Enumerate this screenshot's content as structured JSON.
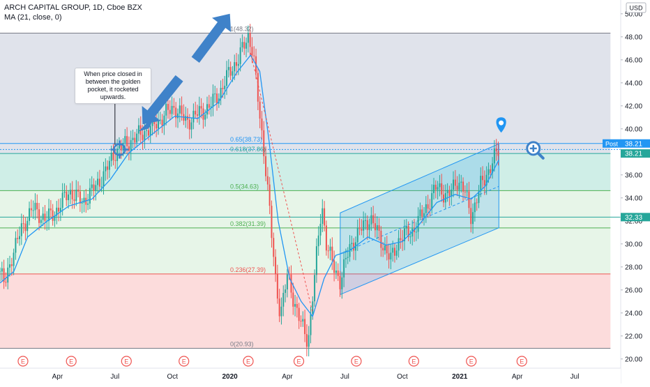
{
  "header": {
    "title": "ARCH CAPITAL GROUP, 1D, Cboe BZX",
    "indicator": "MA (21, close, 0)"
  },
  "callout": {
    "text": "When price closed in between the golden pocket, it rocketed upwards."
  },
  "price_axis": {
    "currency": "USD",
    "post_label": "Post",
    "post_value": "38.21",
    "last_value": "38.21",
    "level_value": "32.33"
  },
  "earnings_marker": "E",
  "colors": {
    "up": "#26a69a",
    "down": "#ef5350",
    "ma": "#2196f3",
    "channel": "#2196f3",
    "arrow": "#3f82c9",
    "fib_1_to_0618": "#e0e3eb",
    "fib_0618_to_05": "#cfeee7",
    "fib_05_to_0236": "#e7f5e8",
    "fib_0236_to_0": "#fcdcdc"
  },
  "chart_data": {
    "type": "candlestick",
    "title": "ARCH CAPITAL GROUP, 1D, Cboe BZX",
    "ylabel": "USD",
    "ylim": [
      19.2,
      51.2
    ],
    "y_ticks": [
      "20.00",
      "22.00",
      "24.00",
      "26.00",
      "28.00",
      "30.00",
      "32.00",
      "34.00",
      "36.00",
      "38.00",
      "40.00",
      "42.00",
      "44.00",
      "46.00",
      "48.00",
      "50.00"
    ],
    "x_ticks": [
      {
        "t": 0.25,
        "label": "Apr"
      },
      {
        "t": 0.5,
        "label": "Jul"
      },
      {
        "t": 0.75,
        "label": "Oct"
      },
      {
        "t": 1.0,
        "label": "2020"
      },
      {
        "t": 1.25,
        "label": "Apr"
      },
      {
        "t": 1.5,
        "label": "Jul"
      },
      {
        "t": 1.75,
        "label": "Oct"
      },
      {
        "t": 2.0,
        "label": "2021"
      },
      {
        "t": 2.25,
        "label": "Apr"
      },
      {
        "t": 2.5,
        "label": "Jul"
      }
    ],
    "time_range": [
      0.0,
      2.7
    ],
    "fib_levels": [
      {
        "label": "1(48.32)",
        "ratio": 1,
        "price": 48.32
      },
      {
        "label": "0.65(38.73)",
        "ratio": 0.65,
        "price": 38.73
      },
      {
        "label": "0.618(37.86)",
        "ratio": 0.618,
        "price": 37.86
      },
      {
        "label": "0.5(34.63)",
        "ratio": 0.5,
        "price": 34.63
      },
      {
        "label": "0.382(31.39)",
        "ratio": 0.382,
        "price": 31.39
      },
      {
        "label": "0.236(27.39)",
        "ratio": 0.236,
        "price": 27.39
      },
      {
        "label": "0(20.93)",
        "ratio": 0,
        "price": 20.93
      }
    ],
    "path_points": [
      {
        "t": 0.0,
        "p": 27.6
      },
      {
        "t": 0.02,
        "p": 26.4
      },
      {
        "t": 0.05,
        "p": 28.9
      },
      {
        "t": 0.1,
        "p": 31.6
      },
      {
        "t": 0.14,
        "p": 33.1
      },
      {
        "t": 0.2,
        "p": 32.1
      },
      {
        "t": 0.25,
        "p": 33.0
      },
      {
        "t": 0.3,
        "p": 34.6
      },
      {
        "t": 0.36,
        "p": 33.6
      },
      {
        "t": 0.42,
        "p": 35.1
      },
      {
        "t": 0.46,
        "p": 36.3
      },
      {
        "t": 0.5,
        "p": 38.0
      },
      {
        "t": 0.55,
        "p": 38.7
      },
      {
        "t": 0.6,
        "p": 39.4
      },
      {
        "t": 0.67,
        "p": 40.3
      },
      {
        "t": 0.72,
        "p": 41.3
      },
      {
        "t": 0.76,
        "p": 41.9
      },
      {
        "t": 0.81,
        "p": 40.6
      },
      {
        "t": 0.86,
        "p": 41.3
      },
      {
        "t": 0.91,
        "p": 41.9
      },
      {
        "t": 0.96,
        "p": 43.3
      },
      {
        "t": 1.0,
        "p": 45.0
      },
      {
        "t": 1.04,
        "p": 46.2
      },
      {
        "t": 1.08,
        "p": 48.1
      },
      {
        "t": 1.1,
        "p": 46.8
      },
      {
        "t": 1.13,
        "p": 41.0
      },
      {
        "t": 1.16,
        "p": 36.0
      },
      {
        "t": 1.18,
        "p": 31.0
      },
      {
        "t": 1.2,
        "p": 26.5
      },
      {
        "t": 1.22,
        "p": 24.0
      },
      {
        "t": 1.25,
        "p": 27.2
      },
      {
        "t": 1.28,
        "p": 25.0
      },
      {
        "t": 1.31,
        "p": 23.0
      },
      {
        "t": 1.34,
        "p": 21.5
      },
      {
        "t": 1.36,
        "p": 25.5
      },
      {
        "t": 1.38,
        "p": 29.5
      },
      {
        "t": 1.4,
        "p": 33.5
      },
      {
        "t": 1.42,
        "p": 30.0
      },
      {
        "t": 1.45,
        "p": 28.0
      },
      {
        "t": 1.48,
        "p": 26.8
      },
      {
        "t": 1.52,
        "p": 29.6
      },
      {
        "t": 1.56,
        "p": 31.0
      },
      {
        "t": 1.61,
        "p": 32.3
      },
      {
        "t": 1.66,
        "p": 30.2
      },
      {
        "t": 1.7,
        "p": 28.6
      },
      {
        "t": 1.74,
        "p": 30.6
      },
      {
        "t": 1.79,
        "p": 31.0
      },
      {
        "t": 1.85,
        "p": 33.0
      },
      {
        "t": 1.9,
        "p": 35.0
      },
      {
        "t": 1.95,
        "p": 34.1
      },
      {
        "t": 1.99,
        "p": 35.6
      },
      {
        "t": 2.02,
        "p": 34.6
      },
      {
        "t": 2.05,
        "p": 32.4
      },
      {
        "t": 2.09,
        "p": 35.0
      },
      {
        "t": 2.13,
        "p": 36.6
      },
      {
        "t": 2.17,
        "p": 38.2
      }
    ],
    "ma_points": [
      {
        "t": 0.0,
        "p": 26.6
      },
      {
        "t": 0.06,
        "p": 27.6
      },
      {
        "t": 0.12,
        "p": 30.6
      },
      {
        "t": 0.2,
        "p": 31.9
      },
      {
        "t": 0.3,
        "p": 33.3
      },
      {
        "t": 0.4,
        "p": 33.9
      },
      {
        "t": 0.48,
        "p": 35.6
      },
      {
        "t": 0.56,
        "p": 37.9
      },
      {
        "t": 0.66,
        "p": 39.5
      },
      {
        "t": 0.76,
        "p": 41.1
      },
      {
        "t": 0.86,
        "p": 40.9
      },
      {
        "t": 0.95,
        "p": 42.3
      },
      {
        "t": 1.03,
        "p": 44.9
      },
      {
        "t": 1.09,
        "p": 46.4
      },
      {
        "t": 1.13,
        "p": 45.0
      },
      {
        "t": 1.17,
        "p": 39.0
      },
      {
        "t": 1.21,
        "p": 32.0
      },
      {
        "t": 1.26,
        "p": 27.0
      },
      {
        "t": 1.31,
        "p": 25.0
      },
      {
        "t": 1.36,
        "p": 23.7
      },
      {
        "t": 1.41,
        "p": 27.0
      },
      {
        "t": 1.46,
        "p": 29.0
      },
      {
        "t": 1.52,
        "p": 29.4
      },
      {
        "t": 1.6,
        "p": 30.6
      },
      {
        "t": 1.68,
        "p": 29.9
      },
      {
        "t": 1.75,
        "p": 30.2
      },
      {
        "t": 1.82,
        "p": 31.6
      },
      {
        "t": 1.9,
        "p": 33.6
      },
      {
        "t": 1.98,
        "p": 34.3
      },
      {
        "t": 2.05,
        "p": 33.9
      },
      {
        "t": 2.11,
        "p": 35.0
      },
      {
        "t": 2.17,
        "p": 37.3
      }
    ],
    "channel": {
      "upper": [
        {
          "t": 1.48,
          "p": 32.7
        },
        {
          "t": 2.17,
          "p": 38.7
        }
      ],
      "lower": [
        {
          "t": 1.48,
          "p": 25.6
        },
        {
          "t": 2.17,
          "p": 31.4
        }
      ],
      "mid": [
        {
          "t": 1.48,
          "p": 29.15
        },
        {
          "t": 2.17,
          "p": 35.0
        }
      ]
    },
    "dashed_projection": [
      {
        "t": 1.09,
        "p": 46.6
      },
      {
        "t": 1.36,
        "p": 24.0
      }
    ],
    "earnings_t": [
      0.1,
      0.31,
      0.55,
      0.8,
      1.08,
      1.3,
      1.55,
      1.8,
      2.05,
      2.27
    ],
    "horizontal_lines": [
      {
        "price": 38.21,
        "style": "dotted",
        "color": "#2196f3"
      },
      {
        "price": 32.33,
        "style": "solid",
        "color": "#26a69a"
      }
    ],
    "arrows": [
      {
        "from": {
          "t": 0.85,
          "p": 46.0
        },
        "to": {
          "t": 1.0,
          "p": 50.0
        }
      },
      {
        "from": {
          "t": 0.78,
          "p": 44.4
        },
        "to": {
          "t": 0.62,
          "p": 40.4
        }
      }
    ]
  }
}
